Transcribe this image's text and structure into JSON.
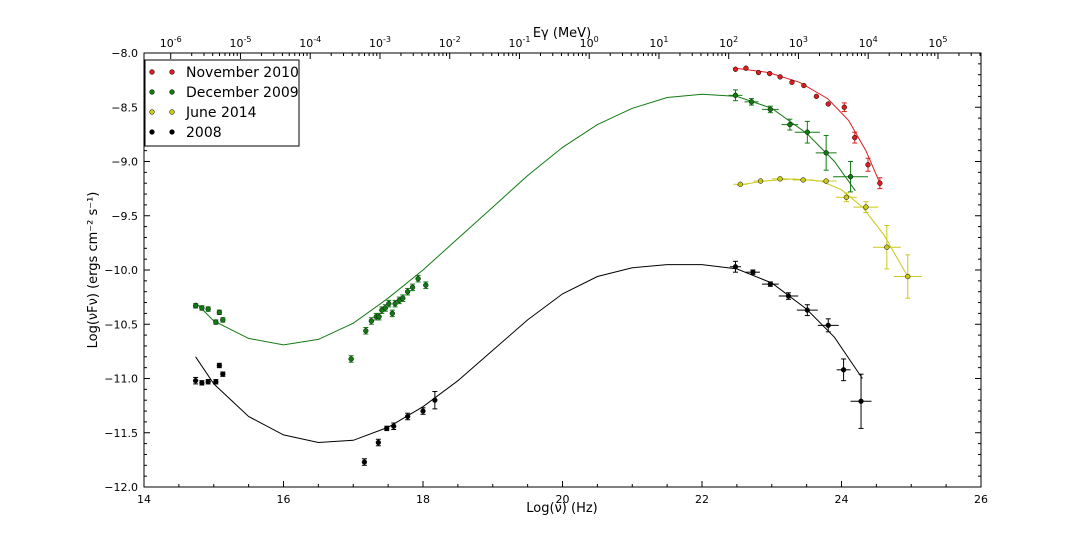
{
  "chart_data": {
    "type": "scatter",
    "xlabel": "Log(ν) (Hz)",
    "ylabel": "Log(νFν) (ergs cm⁻² s⁻¹)",
    "top_xlabel": "Eγ (MeV)",
    "xlim": [
      14,
      26
    ],
    "ylim": [
      -12.0,
      -8.0
    ],
    "x_ticks": [
      14,
      16,
      18,
      20,
      22,
      24,
      26
    ],
    "y_ticks": [
      -12.0,
      -11.5,
      -11.0,
      -10.5,
      -10.0,
      -9.5,
      -9.0,
      -8.5,
      -8.0
    ],
    "y_tick_labels": [
      "−12.0",
      "−11.5",
      "−11.0",
      "−10.5",
      "−10.0",
      "−9.5",
      "−9.0",
      "−8.5",
      "−8.0"
    ],
    "top_ticks": [
      {
        "base": "10",
        "exp": "-6",
        "e": -6
      },
      {
        "base": "10",
        "exp": "-5",
        "e": -5
      },
      {
        "base": "10",
        "exp": "-4",
        "e": -4
      },
      {
        "base": "10",
        "exp": "-3",
        "e": -3
      },
      {
        "base": "10",
        "exp": "-2",
        "e": -2
      },
      {
        "base": "10",
        "exp": "-1",
        "e": -1
      },
      {
        "base": "10",
        "exp": "0",
        "e": 0
      },
      {
        "base": "10",
        "exp": "1",
        "e": 1
      },
      {
        "base": "10",
        "exp": "2",
        "e": 2
      },
      {
        "base": "10",
        "exp": "3",
        "e": 3
      },
      {
        "base": "10",
        "exp": "4",
        "e": 4
      },
      {
        "base": "10",
        "exp": "5",
        "e": 5
      }
    ],
    "legend_position": "top-left",
    "series": [
      {
        "name": "November 2010",
        "color": "#dd1c1c",
        "points": [
          [
            22.48,
            -8.15,
            0.0,
            0.0
          ],
          [
            22.63,
            -8.14,
            0.0,
            0.0
          ],
          [
            22.81,
            -8.18,
            0.0,
            0.0
          ],
          [
            22.97,
            -8.19,
            0.0,
            0.0
          ],
          [
            23.12,
            -8.22,
            0.0,
            0.0
          ],
          [
            23.29,
            -8.27,
            0.0,
            0.0
          ],
          [
            23.46,
            -8.3,
            0.0,
            0.0
          ],
          [
            23.64,
            -8.4,
            0.0,
            0.0
          ],
          [
            23.81,
            -8.47,
            0.0,
            0.0
          ],
          [
            24.04,
            -8.5,
            0.0,
            0.04
          ],
          [
            24.19,
            -8.78,
            0.0,
            0.05
          ],
          [
            24.38,
            -9.03,
            0.0,
            0.06
          ],
          [
            24.55,
            -9.2,
            0.0,
            0.05
          ]
        ],
        "fit": [
          [
            22.48,
            -8.14
          ],
          [
            22.95,
            -8.18
          ],
          [
            23.4,
            -8.27
          ],
          [
            23.8,
            -8.42
          ],
          [
            24.1,
            -8.62
          ],
          [
            24.35,
            -8.9
          ],
          [
            24.55,
            -9.2
          ]
        ]
      },
      {
        "name": "December 2009",
        "color": "#137a13",
        "points": [
          [
            14.74,
            -10.33,
            0.0,
            0.02
          ],
          [
            14.83,
            -10.35,
            0.0,
            0.02
          ],
          [
            14.92,
            -10.36,
            0.0,
            0.02
          ],
          [
            15.03,
            -10.48,
            0.0,
            0.02
          ],
          [
            15.08,
            -10.39,
            0.0,
            0.02
          ],
          [
            15.13,
            -10.46,
            0.0,
            0.02
          ],
          [
            16.97,
            -10.82,
            0.0,
            0.03
          ],
          [
            17.18,
            -10.56,
            0.0,
            0.03
          ],
          [
            17.26,
            -10.47,
            0.0,
            0.03
          ],
          [
            17.33,
            -10.43,
            0.0,
            0.03
          ],
          [
            17.37,
            -10.43,
            0.0,
            0.03
          ],
          [
            17.41,
            -10.37,
            0.0,
            0.03
          ],
          [
            17.46,
            -10.35,
            0.0,
            0.03
          ],
          [
            17.51,
            -10.31,
            0.0,
            0.03
          ],
          [
            17.56,
            -10.4,
            0.0,
            0.03
          ],
          [
            17.6,
            -10.31,
            0.0,
            0.03
          ],
          [
            17.66,
            -10.28,
            0.0,
            0.03
          ],
          [
            17.71,
            -10.26,
            0.0,
            0.03
          ],
          [
            17.78,
            -10.2,
            0.0,
            0.03
          ],
          [
            17.85,
            -10.16,
            0.0,
            0.03
          ],
          [
            17.93,
            -10.08,
            0.0,
            0.03
          ],
          [
            18.04,
            -10.14,
            0.0,
            0.03
          ],
          [
            22.48,
            -8.39,
            0.1,
            0.05
          ],
          [
            22.71,
            -8.45,
            0.1,
            0.03
          ],
          [
            22.98,
            -8.52,
            0.12,
            0.03
          ],
          [
            23.26,
            -8.66,
            0.12,
            0.05
          ],
          [
            23.51,
            -8.73,
            0.18,
            0.1
          ],
          [
            23.78,
            -8.92,
            0.15,
            0.16
          ],
          [
            24.13,
            -9.14,
            0.25,
            0.14
          ]
        ],
        "fit": [
          [
            14.74,
            -10.3
          ],
          [
            15.0,
            -10.47
          ],
          [
            15.5,
            -10.63
          ],
          [
            16.0,
            -10.69
          ],
          [
            16.5,
            -10.64
          ],
          [
            17.0,
            -10.49
          ],
          [
            17.5,
            -10.26
          ],
          [
            18.0,
            -10.0
          ],
          [
            18.5,
            -9.71
          ],
          [
            19.0,
            -9.42
          ],
          [
            19.5,
            -9.13
          ],
          [
            20.0,
            -8.87
          ],
          [
            20.5,
            -8.66
          ],
          [
            21.0,
            -8.51
          ],
          [
            21.5,
            -8.41
          ],
          [
            22.0,
            -8.38
          ],
          [
            22.5,
            -8.4
          ],
          [
            23.0,
            -8.51
          ],
          [
            23.5,
            -8.74
          ],
          [
            23.9,
            -9.0
          ],
          [
            24.2,
            -9.27
          ]
        ]
      },
      {
        "name": "June 2014",
        "color": "#c9c91a",
        "points": [
          [
            22.55,
            -9.21,
            0.1,
            0.0
          ],
          [
            22.84,
            -9.18,
            0.1,
            0.0
          ],
          [
            23.12,
            -9.16,
            0.12,
            0.0
          ],
          [
            23.45,
            -9.17,
            0.15,
            0.0
          ],
          [
            23.78,
            -9.18,
            0.15,
            0.0
          ],
          [
            24.07,
            -9.33,
            0.15,
            0.04
          ],
          [
            24.35,
            -9.42,
            0.18,
            0.05
          ],
          [
            24.65,
            -9.79,
            0.2,
            0.2
          ],
          [
            24.95,
            -10.06,
            0.2,
            0.2
          ]
        ],
        "fit": [
          [
            22.5,
            -9.22
          ],
          [
            22.9,
            -9.18
          ],
          [
            23.3,
            -9.16
          ],
          [
            23.7,
            -9.18
          ],
          [
            24.0,
            -9.26
          ],
          [
            24.3,
            -9.42
          ],
          [
            24.6,
            -9.67
          ],
          [
            24.95,
            -10.06
          ]
        ]
      },
      {
        "name": "2008",
        "color": "#000000",
        "points": [
          [
            14.74,
            -11.02,
            0.0,
            0.03
          ],
          [
            14.83,
            -11.04,
            0.0,
            0.02
          ],
          [
            14.92,
            -11.03,
            0.0,
            0.02
          ],
          [
            15.03,
            -11.03,
            0.0,
            0.02
          ],
          [
            15.08,
            -10.88,
            0.0,
            0.02
          ],
          [
            15.13,
            -10.96,
            0.0,
            0.02
          ],
          [
            17.16,
            -11.77,
            0.0,
            0.03
          ],
          [
            17.36,
            -11.59,
            0.0,
            0.03
          ],
          [
            17.48,
            -11.46,
            0.0,
            0.02
          ],
          [
            17.58,
            -11.44,
            0.0,
            0.03
          ],
          [
            17.78,
            -11.35,
            0.0,
            0.03
          ],
          [
            18.0,
            -11.3,
            0.0,
            0.03
          ],
          [
            18.17,
            -11.2,
            0.0,
            0.08
          ],
          [
            22.48,
            -9.97,
            0.08,
            0.05
          ],
          [
            22.73,
            -10.02,
            0.1,
            0.02
          ],
          [
            22.98,
            -10.13,
            0.12,
            0.02
          ],
          [
            23.24,
            -10.24,
            0.14,
            0.03
          ],
          [
            23.51,
            -10.37,
            0.15,
            0.05
          ],
          [
            23.81,
            -10.51,
            0.15,
            0.06
          ],
          [
            24.03,
            -10.92,
            0.1,
            0.1
          ],
          [
            24.28,
            -11.21,
            0.15,
            0.25
          ]
        ],
        "fit": [
          [
            14.74,
            -10.8
          ],
          [
            15.0,
            -11.05
          ],
          [
            15.5,
            -11.35
          ],
          [
            16.0,
            -11.52
          ],
          [
            16.5,
            -11.59
          ],
          [
            17.0,
            -11.57
          ],
          [
            17.5,
            -11.45
          ],
          [
            18.0,
            -11.26
          ],
          [
            18.5,
            -11.02
          ],
          [
            19.0,
            -10.74
          ],
          [
            19.5,
            -10.46
          ],
          [
            20.0,
            -10.22
          ],
          [
            20.5,
            -10.06
          ],
          [
            21.0,
            -9.98
          ],
          [
            21.5,
            -9.95
          ],
          [
            22.0,
            -9.95
          ],
          [
            22.5,
            -9.99
          ],
          [
            23.0,
            -10.12
          ],
          [
            23.5,
            -10.36
          ],
          [
            23.9,
            -10.62
          ],
          [
            24.3,
            -11.0
          ]
        ]
      }
    ]
  }
}
